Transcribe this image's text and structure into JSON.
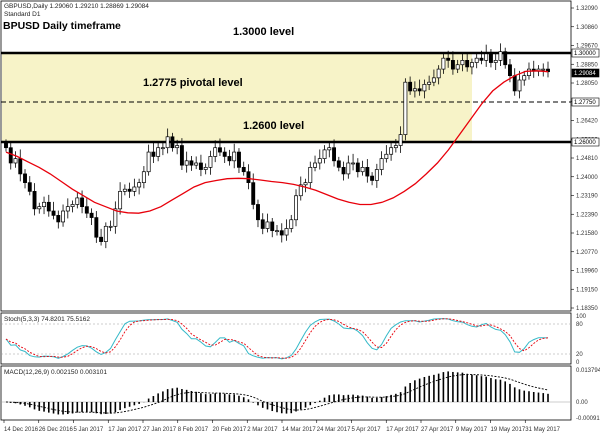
{
  "header": {
    "symbol_line": "GBPUSD,Daily  1.29060 1.29210 1.28869 1.29084",
    "template": "Standard D1",
    "chart_title": "BPUSD Daily timeframe"
  },
  "annotations": {
    "level_1300": "1.3000 level",
    "level_12775": "1.2775 pivotal level",
    "level_1260": "1.2600 level"
  },
  "price_axis": {
    "ticks": [
      "1.32090",
      "1.30860",
      "1.29670",
      "1.28850",
      "1.28050",
      "1.27240",
      "1.26420",
      "1.25630",
      "1.24810",
      "1.24000",
      "1.23190",
      "1.22390",
      "1.21580",
      "1.20770",
      "1.19960",
      "1.19150",
      "1.18350"
    ],
    "tags": [
      "1.30000",
      "1.29084",
      "1.27750",
      "1.26000"
    ]
  },
  "stoch_panel": {
    "label": "Stoch(5,3,3) 74.8201 75.5162",
    "ticks": [
      "100",
      "80",
      "20",
      "0"
    ]
  },
  "macd_panel": {
    "label": "MACD(12,26,9) 0.002150 0.003101",
    "ticks": [
      "0.013794",
      "0.00",
      "-0.00091"
    ]
  },
  "time_axis": {
    "labels": [
      "14 Dec 2016",
      "26 Dec 2016",
      "5 Jan 2017",
      "17 Jan 2017",
      "27 Jan 2017",
      "8 Feb 2017",
      "20 Feb 2017",
      "2 Mar 2017",
      "14 Mar 2017",
      "24 Mar 2017",
      "5 Apr 2017",
      "17 Apr 2017",
      "27 Apr 2017",
      "9 May 2017",
      "19 May 2017",
      "31 May 2017"
    ]
  },
  "colors": {
    "zone_fill": "#f7f3c8",
    "ma_line": "#e8000b",
    "candle": "#000000",
    "stoch_main": "#35b9c8",
    "stoch_signal": "#e8000b",
    "macd_hist": "#000000",
    "macd_signal": "#000000"
  },
  "chart_data": {
    "type": "candlestick",
    "title": "BPUSD Daily timeframe",
    "x_range": [
      "14 Dec 2016",
      "6 Jun 2017"
    ],
    "y_range": [
      1.1835,
      1.3209
    ],
    "horizontal_levels": [
      1.3,
      1.2775,
      1.26
    ],
    "close_series": [
      1.256,
      1.249,
      1.251,
      1.244,
      1.24,
      1.236,
      1.228,
      1.229,
      1.231,
      1.227,
      1.225,
      1.222,
      1.227,
      1.229,
      1.23,
      1.233,
      1.229,
      1.226,
      1.224,
      1.215,
      1.213,
      1.22,
      1.22,
      1.228,
      1.236,
      1.237,
      1.236,
      1.238,
      1.24,
      1.245,
      1.254,
      1.252,
      1.256,
      1.256,
      1.261,
      1.256,
      1.257,
      1.248,
      1.25,
      1.248,
      1.249,
      1.246,
      1.247,
      1.252,
      1.256,
      1.254,
      1.252,
      1.25,
      1.254,
      1.247,
      1.245,
      1.24,
      1.23,
      1.223,
      1.219,
      1.222,
      1.218,
      1.218,
      1.216,
      1.219,
      1.223,
      1.234,
      1.239,
      1.24,
      1.247,
      1.249,
      1.251,
      1.255,
      1.256,
      1.25,
      1.247,
      1.244,
      1.249,
      1.249,
      1.245,
      1.247,
      1.243,
      1.241,
      1.246,
      1.251,
      1.253,
      1.256,
      1.257,
      1.262,
      1.286,
      1.282,
      1.283,
      1.282,
      1.285,
      1.286,
      1.288,
      1.292,
      1.297,
      1.296,
      1.292,
      1.294,
      1.296,
      1.293,
      1.295,
      1.297,
      1.296,
      1.299,
      1.295,
      1.296,
      1.3,
      1.294,
      1.289,
      1.282,
      1.287,
      1.289,
      1.292,
      1.291,
      1.292,
      1.292,
      1.2908
    ],
    "moving_average": [
      1.254,
      1.252,
      1.2495,
      1.247,
      1.244,
      1.2405,
      1.237,
      1.234,
      1.231,
      1.229,
      1.227,
      1.2262,
      1.226,
      1.227,
      1.229,
      1.232,
      1.235,
      1.238,
      1.24,
      1.241,
      1.2418,
      1.242,
      1.2418,
      1.2412,
      1.2405,
      1.24,
      1.2392,
      1.238,
      1.2365,
      1.2345,
      1.2325,
      1.231,
      1.23,
      1.23,
      1.231,
      1.233,
      1.236,
      1.2395,
      1.244,
      1.249,
      1.255,
      1.262,
      1.269,
      1.276,
      1.282,
      1.286,
      1.289,
      1.291,
      1.2912,
      1.2908
    ],
    "stochastic": {
      "main": 74.8201,
      "signal": 75.5162,
      "levels": [
        80,
        20
      ]
    },
    "macd": {
      "main": 0.00215,
      "signal": 0.003101
    }
  }
}
